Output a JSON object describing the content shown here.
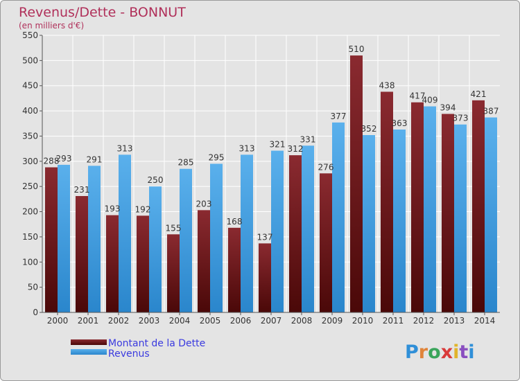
{
  "chart_data": {
    "type": "bar",
    "title": "Revenus/Dette - BONNUT",
    "subtitle": "(en milliers d'€)",
    "categories": [
      "2000",
      "2001",
      "2002",
      "2003",
      "2004",
      "2005",
      "2006",
      "2007",
      "2008",
      "2009",
      "2010",
      "2011",
      "2012",
      "2013",
      "2014"
    ],
    "series": [
      {
        "name": "Montant de la Dette",
        "color": "#7a1f24",
        "values": [
          288,
          231,
          193,
          192,
          155,
          203,
          168,
          137,
          312,
          276,
          510,
          438,
          417,
          394,
          421
        ]
      },
      {
        "name": "Revenus",
        "color": "#3e9be0",
        "values": [
          293,
          291,
          313,
          250,
          285,
          295,
          313,
          321,
          331,
          377,
          352,
          363,
          409,
          373,
          387
        ]
      }
    ],
    "ylim": [
      0,
      550
    ],
    "yticks": [
      0,
      50,
      100,
      150,
      200,
      250,
      300,
      350,
      400,
      450,
      500,
      550
    ],
    "grid": true,
    "legend_placement": "bottom-left"
  },
  "branding": {
    "text": "Proxiti"
  }
}
